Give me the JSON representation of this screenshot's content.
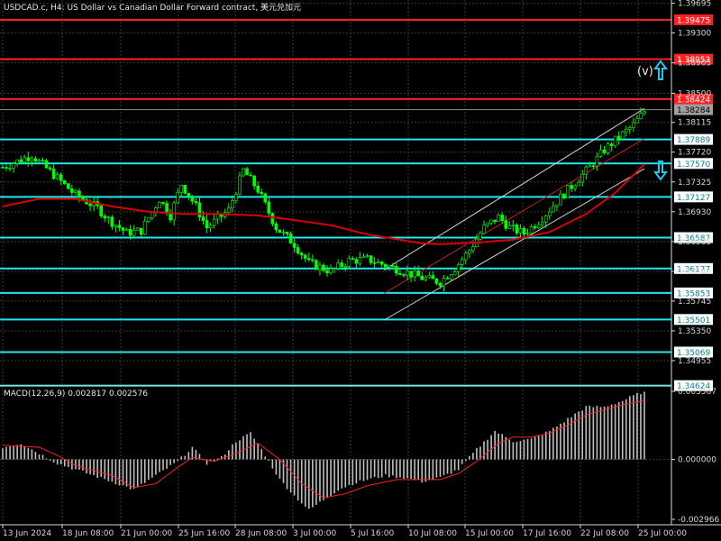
{
  "chart_title": "USDCAD.c, H4:  US Dollar vs Canadian Dollar Forward contract, 美元兑加元",
  "macd_label": "MACD(12,26,9) 0.002817 0.002576",
  "wave_label": "(v)",
  "colors": {
    "background": "#000000",
    "grid": "#3a3a3a",
    "bull_candle": "#00ff00",
    "bear_candle": "#00ff00",
    "moving_average": "#d90000",
    "resistance": "#ff2020",
    "support": "#20e8f0",
    "channel": "#d0d0d0",
    "macd_hist": "#c0c0c0",
    "signal": "#ff2020",
    "axis_text": "#d8d8d8"
  },
  "chart_data": {
    "type": "candlestick",
    "symbol": "USDCAD.c",
    "timeframe": "H4",
    "price_axis": {
      "ylim": [
        1.3462,
        1.3969
      ],
      "ticks": [
        "1.39695",
        "1.39300",
        "1.38905",
        "1.38500",
        "1.38115",
        "1.37720",
        "1.37325",
        "1.36930",
        "1.36535",
        "1.36140",
        "1.35745",
        "1.35350",
        "1.34955"
      ]
    },
    "time_axis": {
      "labels": [
        "13 Jun 2024",
        "18 Jun 08:00",
        "21 Jun 00:00",
        "25 Jun 16:00",
        "28 Jun 08:00",
        "3 Jul 00:00",
        "5 Jul 16:00",
        "10 Jul 08:00",
        "15 Jul 00:00",
        "17 Jul 16:00",
        "22 Jul 08:00",
        "25 Jul 00:00"
      ]
    },
    "price_path": [
      [
        0,
        1.3752
      ],
      [
        8,
        1.3768
      ],
      [
        14,
        1.3742
      ],
      [
        20,
        1.3715
      ],
      [
        26,
        1.3698
      ],
      [
        29,
        1.3683
      ],
      [
        34,
        1.3665
      ],
      [
        38,
        1.3668
      ],
      [
        43,
        1.371
      ],
      [
        46,
        1.3688
      ],
      [
        49,
        1.373
      ],
      [
        53,
        1.37
      ],
      [
        56,
        1.3672
      ],
      [
        62,
        1.3695
      ],
      [
        66,
        1.3748
      ],
      [
        70,
        1.3722
      ],
      [
        75,
        1.3672
      ],
      [
        80,
        1.365
      ],
      [
        84,
        1.3625
      ],
      [
        90,
        1.3614
      ],
      [
        95,
        1.3628
      ],
      [
        100,
        1.363
      ],
      [
        105,
        1.3622
      ],
      [
        110,
        1.3614
      ],
      [
        115,
        1.3605
      ],
      [
        120,
        1.36
      ],
      [
        124,
        1.3618
      ],
      [
        128,
        1.3642
      ],
      [
        132,
        1.3672
      ],
      [
        136,
        1.3686
      ],
      [
        139,
        1.3672
      ],
      [
        143,
        1.3664
      ],
      [
        148,
        1.3685
      ],
      [
        153,
        1.3712
      ],
      [
        157,
        1.3732
      ],
      [
        161,
        1.3752
      ],
      [
        165,
        1.3775
      ],
      [
        169,
        1.3792
      ],
      [
        173,
        1.3808
      ],
      [
        176,
        1.3826
      ]
    ],
    "moving_average": [
      [
        0,
        1.37
      ],
      [
        10,
        1.371
      ],
      [
        20,
        1.371
      ],
      [
        30,
        1.37
      ],
      [
        40,
        1.3693
      ],
      [
        50,
        1.369
      ],
      [
        60,
        1.369
      ],
      [
        70,
        1.3688
      ],
      [
        80,
        1.3682
      ],
      [
        90,
        1.3675
      ],
      [
        100,
        1.3663
      ],
      [
        110,
        1.3655
      ],
      [
        115,
        1.3651
      ],
      [
        120,
        1.365
      ],
      [
        130,
        1.3652
      ],
      [
        140,
        1.3656
      ],
      [
        150,
        1.3666
      ],
      [
        160,
        1.369
      ],
      [
        168,
        1.3718
      ],
      [
        176,
        1.3756
      ]
    ],
    "channel": {
      "upper": [
        [
          112,
          1.3638
        ],
        [
          176,
          1.383
        ]
      ],
      "lower": [
        [
          112,
          1.357
        ],
        [
          176,
          1.375
        ]
      ],
      "middle": [
        [
          112,
          1.3606
        ],
        [
          176,
          1.379
        ]
      ]
    },
    "levels": [
      {
        "price": 1.39475,
        "label": "1.39475",
        "kind": "resistance"
      },
      {
        "price": 1.38953,
        "label": "1.38953",
        "kind": "resistance"
      },
      {
        "price": 1.38424,
        "label": "1.38424",
        "kind": "resistance"
      },
      {
        "price": 1.38284,
        "label": "1.38284",
        "kind": "current"
      },
      {
        "price": 1.37889,
        "label": "1.37889",
        "kind": "support"
      },
      {
        "price": 1.3757,
        "label": "1.37570",
        "kind": "support"
      },
      {
        "price": 1.37127,
        "label": "1.37127",
        "kind": "support"
      },
      {
        "price": 1.36587,
        "label": "1.36587",
        "kind": "support"
      },
      {
        "price": 1.36177,
        "label": "1.36177",
        "kind": "support"
      },
      {
        "price": 1.35853,
        "label": "1.35853",
        "kind": "support"
      },
      {
        "price": 1.35501,
        "label": "1.35501",
        "kind": "support"
      },
      {
        "price": 1.35069,
        "label": "1.35069",
        "kind": "support"
      },
      {
        "price": 1.34624,
        "label": "1.34624",
        "kind": "support"
      }
    ],
    "macd": {
      "ylim": [
        -0.002966,
        0.003367
      ],
      "ticks": [
        "0.003367",
        "0.000000",
        "-0.002966"
      ],
      "histogram_path": [
        [
          0,
          0.0006
        ],
        [
          5,
          0.0008
        ],
        [
          10,
          0.0003
        ],
        [
          15,
          -0.0002
        ],
        [
          20,
          -0.0005
        ],
        [
          25,
          -0.0008
        ],
        [
          30,
          -0.0011
        ],
        [
          36,
          -0.0015
        ],
        [
          42,
          -0.0008
        ],
        [
          48,
          -0.0001
        ],
        [
          52,
          0.0006
        ],
        [
          56,
          -0.0002
        ],
        [
          60,
          0.0001
        ],
        [
          64,
          0.0009
        ],
        [
          68,
          0.0013
        ],
        [
          72,
          0.0002
        ],
        [
          76,
          -0.001
        ],
        [
          80,
          -0.0018
        ],
        [
          84,
          -0.0025
        ],
        [
          88,
          -0.002
        ],
        [
          92,
          -0.0015
        ],
        [
          96,
          -0.0012
        ],
        [
          100,
          -0.001
        ],
        [
          105,
          -0.0008
        ],
        [
          110,
          -0.0009
        ],
        [
          115,
          -0.0011
        ],
        [
          120,
          -0.0009
        ],
        [
          125,
          -0.0005
        ],
        [
          130,
          0.0005
        ],
        [
          135,
          0.0014
        ],
        [
          140,
          0.0009
        ],
        [
          145,
          0.001
        ],
        [
          150,
          0.0014
        ],
        [
          155,
          0.002
        ],
        [
          160,
          0.0026
        ],
        [
          165,
          0.0026
        ],
        [
          170,
          0.0029
        ],
        [
          175,
          0.0033
        ]
      ],
      "signal_path": [
        [
          0,
          0.0007
        ],
        [
          10,
          0.0006
        ],
        [
          15,
          0.0002
        ],
        [
          20,
          -0.0003
        ],
        [
          30,
          -0.0008
        ],
        [
          36,
          -0.0014
        ],
        [
          42,
          -0.0012
        ],
        [
          48,
          -0.0004
        ],
        [
          52,
          0.0001
        ],
        [
          58,
          -0.0001
        ],
        [
          64,
          0.0003
        ],
        [
          70,
          0.0008
        ],
        [
          76,
          0.0
        ],
        [
          82,
          -0.0012
        ],
        [
          88,
          -0.0019
        ],
        [
          94,
          -0.0017
        ],
        [
          100,
          -0.0013
        ],
        [
          108,
          -0.001
        ],
        [
          115,
          -0.001
        ],
        [
          120,
          -0.001
        ],
        [
          125,
          -0.0007
        ],
        [
          130,
          -0.0001
        ],
        [
          136,
          0.0008
        ],
        [
          140,
          0.0011
        ],
        [
          145,
          0.0011
        ],
        [
          150,
          0.0013
        ],
        [
          155,
          0.0017
        ],
        [
          160,
          0.0022
        ],
        [
          166,
          0.0025
        ],
        [
          170,
          0.0027
        ],
        [
          176,
          0.0029
        ]
      ]
    }
  }
}
